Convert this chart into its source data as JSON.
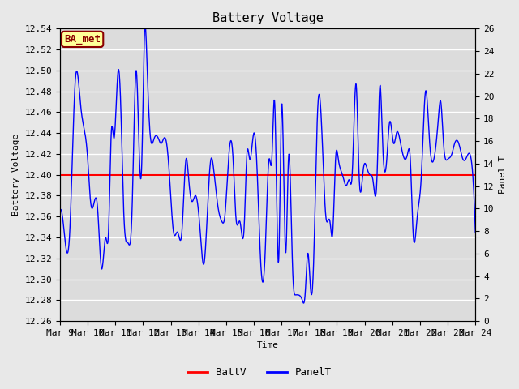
{
  "title": "Battery Voltage",
  "xlabel": "Time",
  "ylabel_left": "Battery Voltage",
  "ylabel_right": "Panel T",
  "annotation_text": "BA_met",
  "annotation_bg": "#FFFF99",
  "annotation_border": "#8B0000",
  "annotation_text_color": "#8B0000",
  "xlim": [
    0,
    15
  ],
  "ylim_left": [
    12.26,
    12.54
  ],
  "ylim_right": [
    0,
    26
  ],
  "yticks_left": [
    12.26,
    12.28,
    12.3,
    12.32,
    12.34,
    12.36,
    12.38,
    12.4,
    12.42,
    12.44,
    12.46,
    12.48,
    12.5,
    12.52,
    12.54
  ],
  "yticks_right": [
    0,
    2,
    4,
    6,
    8,
    10,
    12,
    14,
    16,
    18,
    20,
    22,
    24,
    26
  ],
  "xtick_labels": [
    "Mar 9",
    "Mar 10",
    "Mar 11",
    "Mar 12",
    "Mar 13",
    "Mar 14",
    "Mar 15",
    "Mar 16",
    "Mar 17",
    "Mar 18",
    "Mar 19",
    "Mar 20",
    "Mar 21",
    "Mar 22",
    "Mar 23",
    "Mar 24"
  ],
  "batt_v_value": 12.4,
  "batt_color": "#FF0000",
  "panel_color": "#0000FF",
  "fig_bg_color": "#E8E8E8",
  "plot_bg_color": "#DCDCDC",
  "grid_color": "#FFFFFF",
  "title_fontsize": 11,
  "axis_label_fontsize": 8,
  "tick_fontsize": 8,
  "legend_labels": [
    "BattV",
    "PanelT"
  ],
  "key_x": [
    0,
    0.15,
    0.35,
    0.55,
    0.75,
    0.9,
    1.0,
    1.1,
    1.2,
    1.35,
    1.5,
    1.65,
    1.75,
    1.85,
    1.95,
    2.1,
    2.2,
    2.3,
    2.45,
    2.6,
    2.75,
    2.85,
    2.95,
    3.05,
    3.15,
    3.25,
    3.4,
    3.55,
    3.65,
    3.75,
    3.85,
    3.95,
    4.1,
    4.25,
    4.4,
    4.55,
    4.65,
    4.75,
    4.9,
    5.05,
    5.2,
    5.35,
    5.45,
    5.55,
    5.7,
    5.85,
    5.95,
    6.1,
    6.25,
    6.35,
    6.5,
    6.65,
    6.75,
    6.85,
    7.0,
    7.1,
    7.25,
    7.4,
    7.55,
    7.65,
    7.75,
    7.9,
    8.0,
    8.15,
    8.25,
    8.4,
    8.5,
    8.6,
    8.75,
    8.85,
    8.95,
    9.05,
    9.15,
    9.3,
    9.45,
    9.6,
    9.75,
    9.85,
    9.95,
    10.05,
    10.2,
    10.35,
    10.45,
    10.55,
    10.7,
    10.8,
    10.95,
    11.1,
    11.2,
    11.3,
    11.45,
    11.55,
    11.65,
    11.8,
    11.9,
    12.05,
    12.15,
    12.3,
    12.45,
    12.55,
    12.65,
    12.75,
    12.9,
    13.05,
    13.2,
    13.35,
    13.5,
    13.65,
    13.75,
    13.85,
    14.0,
    14.15,
    14.25,
    14.4,
    14.55,
    14.65,
    14.8,
    15.0
  ],
  "key_y": [
    12.365,
    12.345,
    12.345,
    12.49,
    12.465,
    12.44,
    12.415,
    12.375,
    12.37,
    12.37,
    12.31,
    12.34,
    12.345,
    12.44,
    12.435,
    12.5,
    12.46,
    12.365,
    12.335,
    12.365,
    12.5,
    12.43,
    12.41,
    12.535,
    12.5,
    12.44,
    12.435,
    12.435,
    12.43,
    12.435,
    12.43,
    12.4,
    12.345,
    12.345,
    12.345,
    12.415,
    12.395,
    12.375,
    12.38,
    12.35,
    12.315,
    12.38,
    12.415,
    12.405,
    12.37,
    12.355,
    12.36,
    12.42,
    12.415,
    12.36,
    12.355,
    12.35,
    12.42,
    12.415,
    12.44,
    12.415,
    12.315,
    12.32,
    12.415,
    12.415,
    12.47,
    12.32,
    12.465,
    12.325,
    12.415,
    12.31,
    12.285,
    12.285,
    12.28,
    12.285,
    12.325,
    12.29,
    12.31,
    12.46,
    12.445,
    12.36,
    12.355,
    12.345,
    12.415,
    12.415,
    12.4,
    12.39,
    12.395,
    12.4,
    12.485,
    12.4,
    12.405,
    12.405,
    12.4,
    12.395,
    12.4,
    12.485,
    12.43,
    12.415,
    12.45,
    12.43,
    12.44,
    12.43,
    12.415,
    12.42,
    12.415,
    12.345,
    12.36,
    12.4,
    12.48,
    12.43,
    12.415,
    12.45,
    12.47,
    12.43,
    12.415,
    12.42,
    12.43,
    12.43,
    12.415,
    12.415,
    12.42,
    12.345
  ]
}
